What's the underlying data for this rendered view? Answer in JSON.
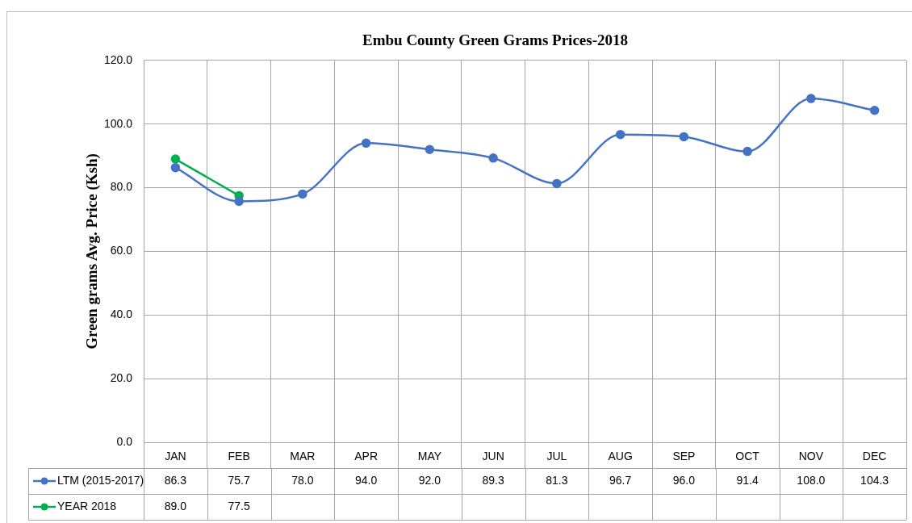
{
  "chart_data": {
    "type": "line",
    "title": "Embu County Green Grams Prices-2018",
    "ylabel": "Green grams Avg. Price (Ksh)",
    "categories": [
      "JAN",
      "FEB",
      "MAR",
      "APR",
      "MAY",
      "JUN",
      "JUL",
      "AUG",
      "SEP",
      "OCT",
      "NOV",
      "DEC"
    ],
    "ylim": [
      0,
      120
    ],
    "yticks": [
      {
        "value": 0,
        "label": "0.0"
      },
      {
        "value": 20,
        "label": "20.0"
      },
      {
        "value": 40,
        "label": "40.0"
      },
      {
        "value": 60,
        "label": "60.0"
      },
      {
        "value": 80,
        "label": "80.0"
      },
      {
        "value": 100,
        "label": "100.0"
      },
      {
        "value": 120,
        "label": "120.0"
      }
    ],
    "grid": true,
    "legend": "bottom",
    "marker": "circle",
    "line_style": "solid",
    "series": [
      {
        "name": "LTM (2015-2017)",
        "color": "#4472c4",
        "values": [
          86.3,
          75.7,
          78.0,
          94.0,
          92.0,
          89.3,
          81.3,
          96.7,
          96.0,
          91.4,
          108.0,
          104.3
        ],
        "value_labels": [
          "86.3",
          "75.7",
          "78.0",
          "94.0",
          "92.0",
          "89.3",
          "81.3",
          "96.7",
          "96.0",
          "91.4",
          "108.0",
          "104.3"
        ]
      },
      {
        "name": "YEAR 2018",
        "color": "#00b050",
        "values": [
          89.0,
          77.5,
          null,
          null,
          null,
          null,
          null,
          null,
          null,
          null,
          null,
          null
        ],
        "value_labels": [
          "89.0",
          "77.5",
          null,
          null,
          null,
          null,
          null,
          null,
          null,
          null,
          null,
          null
        ]
      }
    ]
  }
}
